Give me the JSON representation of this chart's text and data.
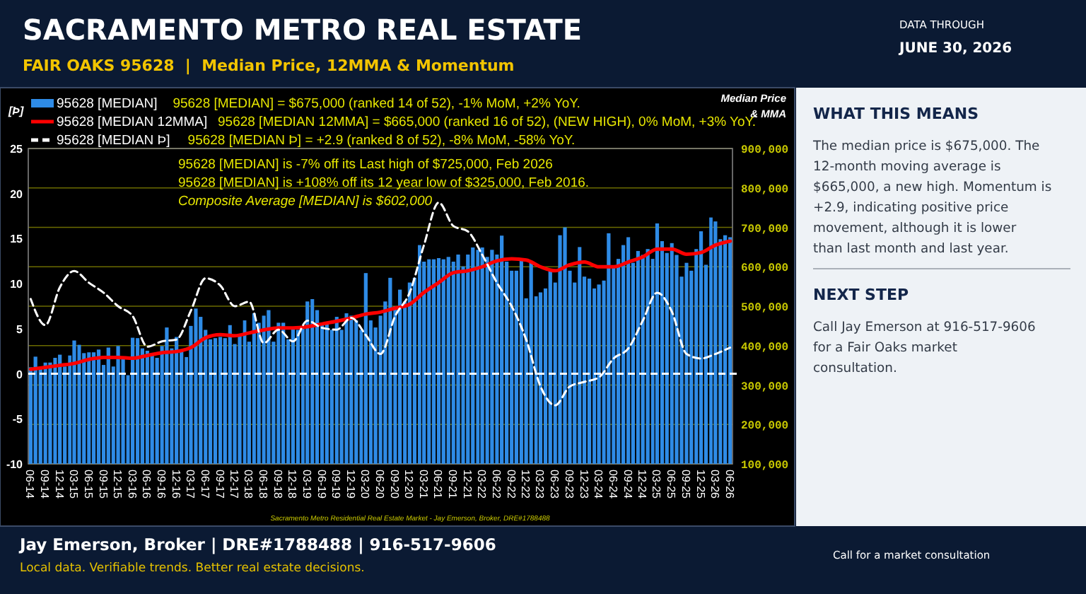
{
  "chart_data": {
    "type": "bar",
    "title": "SACRAMENTO METRO REAL ESTATE",
    "subtitle": "FAIR OAKS 95628  |  Median Price, 12MMA & Momentum",
    "ylabel": "[Þ]",
    "y2label": "Median Price & MMA",
    "annotations": [
      "95628 [MEDIAN] = $675,000 (ranked 14 of 52),  -1% MoM, +2% YoY.",
      "95628 [MEDIAN 12MMA] = $665,000 (ranked 16 of 52), (NEW HIGH), 0% MoM, +3% YoY.",
      "95628 [MEDIAN Þ] = +2.9 (ranked 8 of 52), -8% MoM, -58% YoY.",
      "95628 [MEDIAN] is -7% off its Last high of $725,000, Feb 2026",
      "95628 [MEDIAN] is +108% off its 12 year low of $325,000, Feb 2016.",
      "Composite Average [MEDIAN] is $602,000",
      "Sacramento Metro Residential Real Estate Market - Jay Emerson, Broker, DRE#1788488",
      "DATA THROUGH",
      "JUNE 30, 2026",
      "WHAT THIS MEANS",
      "The median price is $675,000. The 12-month moving average is $665,000, a new high. Momentum is +2.9, indicating positive price movement, although it is lower than last month and last year.",
      "NEXT STEP",
      "Call Jay Emerson at 916-517-9606 for a Fair Oaks market consultation.",
      "Jay Emerson, Broker | DRE#1788488 | 916-517-9606",
      "Local data. Verifiable trends. Better real estate decisions.",
      "Call for a market consultation"
    ],
    "x": [
      "2014-06",
      "2014-07",
      "2014-08",
      "2014-09",
      "2014-10",
      "2014-11",
      "2014-12",
      "2015-01",
      "2015-02",
      "2015-03",
      "2015-04",
      "2015-05",
      "2015-06",
      "2015-07",
      "2015-08",
      "2015-09",
      "2015-10",
      "2015-11",
      "2015-12",
      "2016-01",
      "2016-02",
      "2016-03",
      "2016-04",
      "2016-05",
      "2016-06",
      "2016-07",
      "2016-08",
      "2016-09",
      "2016-10",
      "2016-11",
      "2016-12",
      "2017-01",
      "2017-02",
      "2017-03",
      "2017-04",
      "2017-05",
      "2017-06",
      "2017-07",
      "2017-08",
      "2017-09",
      "2017-10",
      "2017-11",
      "2017-12",
      "2018-01",
      "2018-02",
      "2018-03",
      "2018-04",
      "2018-05",
      "2018-06",
      "2018-07",
      "2018-08",
      "2018-09",
      "2018-10",
      "2018-11",
      "2018-12",
      "2019-01",
      "2019-02",
      "2019-03",
      "2019-04",
      "2019-05",
      "2019-06",
      "2019-07",
      "2019-08",
      "2019-09",
      "2019-10",
      "2019-11",
      "2019-12",
      "2020-01",
      "2020-02",
      "2020-03",
      "2020-04",
      "2020-05",
      "2020-06",
      "2020-07",
      "2020-08",
      "2020-09",
      "2020-10",
      "2020-11",
      "2020-12",
      "2021-01",
      "2021-02",
      "2021-03",
      "2021-04",
      "2021-05",
      "2021-06",
      "2021-07",
      "2021-08",
      "2021-09",
      "2021-10",
      "2021-11",
      "2021-12",
      "2022-01",
      "2022-02",
      "2022-03",
      "2022-04",
      "2022-05",
      "2022-06",
      "2022-07",
      "2022-08",
      "2022-09",
      "2022-10",
      "2022-11",
      "2022-12",
      "2023-01",
      "2023-02",
      "2023-03",
      "2023-04",
      "2023-05",
      "2023-06",
      "2023-07",
      "2023-08",
      "2023-09",
      "2023-10",
      "2023-11",
      "2023-12",
      "2024-01",
      "2024-02",
      "2024-03",
      "2024-04",
      "2024-05",
      "2024-06",
      "2024-07",
      "2024-08",
      "2024-09",
      "2024-10",
      "2024-11",
      "2024-12",
      "2025-01",
      "2025-02",
      "2025-03",
      "2025-04",
      "2025-05",
      "2025-06",
      "2025-07",
      "2025-08",
      "2025-09",
      "2025-10",
      "2025-11",
      "2025-12",
      "2026-01",
      "2026-02",
      "2026-03",
      "2026-04",
      "2026-05",
      "2026-06"
    ],
    "xlim": [
      "2014-05-17",
      "2026-06-16"
    ],
    "xticks": [
      {
        "value": "2014-06",
        "label": "06-14"
      },
      {
        "value": "2014-09",
        "label": "09-14"
      },
      {
        "value": "2014-12",
        "label": "12-14"
      },
      {
        "value": "2015-03",
        "label": "03-15"
      },
      {
        "value": "2015-06",
        "label": "06-15"
      },
      {
        "value": "2015-09",
        "label": "09-15"
      },
      {
        "value": "2015-12",
        "label": "12-15"
      },
      {
        "value": "2016-03",
        "label": "03-16"
      },
      {
        "value": "2016-06",
        "label": "06-16"
      },
      {
        "value": "2016-09",
        "label": "09-16"
      },
      {
        "value": "2016-12",
        "label": "12-16"
      },
      {
        "value": "2017-03",
        "label": "03-17"
      },
      {
        "value": "2017-06",
        "label": "06-17"
      },
      {
        "value": "2017-09",
        "label": "09-17"
      },
      {
        "value": "2017-12",
        "label": "12-17"
      },
      {
        "value": "2018-03",
        "label": "03-18"
      },
      {
        "value": "2018-06",
        "label": "06-18"
      },
      {
        "value": "2018-09",
        "label": "09-18"
      },
      {
        "value": "2018-12",
        "label": "12-18"
      },
      {
        "value": "2019-03",
        "label": "03-19"
      },
      {
        "value": "2019-06",
        "label": "06-19"
      },
      {
        "value": "2019-09",
        "label": "09-19"
      },
      {
        "value": "2019-12",
        "label": "12-19"
      },
      {
        "value": "2020-03",
        "label": "03-20"
      },
      {
        "value": "2020-06",
        "label": "06-20"
      },
      {
        "value": "2020-09",
        "label": "09-20"
      },
      {
        "value": "2020-12",
        "label": "12-20"
      },
      {
        "value": "2021-03",
        "label": "03-21"
      },
      {
        "value": "2021-06",
        "label": "06-21"
      },
      {
        "value": "2021-09",
        "label": "09-21"
      },
      {
        "value": "2021-12",
        "label": "12-21"
      },
      {
        "value": "2022-03",
        "label": "03-22"
      },
      {
        "value": "2022-06",
        "label": "06-22"
      },
      {
        "value": "2022-09",
        "label": "09-22"
      },
      {
        "value": "2022-12",
        "label": "12-22"
      },
      {
        "value": "2023-03",
        "label": "03-23"
      },
      {
        "value": "2023-06",
        "label": "06-23"
      },
      {
        "value": "2023-09",
        "label": "09-23"
      },
      {
        "value": "2023-12",
        "label": "12-23"
      },
      {
        "value": "2024-03",
        "label": "03-24"
      },
      {
        "value": "2024-06",
        "label": "06-24"
      },
      {
        "value": "2024-09",
        "label": "09-24"
      },
      {
        "value": "2024-12",
        "label": "12-24"
      },
      {
        "value": "2025-03",
        "label": "03-25"
      },
      {
        "value": "2025-06",
        "label": "06-25"
      },
      {
        "value": "2025-09",
        "label": "09-25"
      },
      {
        "value": "2025-12",
        "label": "12-25"
      },
      {
        "value": "2026-03",
        "label": "03-26"
      },
      {
        "value": "2026-06",
        "label": "06-26"
      }
    ],
    "ylim": [
      -10,
      25
    ],
    "yticks": [
      -10,
      -5,
      0,
      5,
      10,
      15,
      20,
      25
    ],
    "y2lim": [
      100000,
      900000
    ],
    "y2ticks": [
      {
        "value": 100000,
        "label": "100,000"
      },
      {
        "value": 200000,
        "label": "200,000"
      },
      {
        "value": 300000,
        "label": "300,000"
      },
      {
        "value": 400000,
        "label": "400,000"
      },
      {
        "value": 500000,
        "label": "500,000"
      },
      {
        "value": 600000,
        "label": "600,000"
      },
      {
        "value": 700000,
        "label": "700,000"
      },
      {
        "value": 800000,
        "label": "800,000"
      },
      {
        "value": 900000,
        "label": "900,000"
      }
    ],
    "grid": "y2",
    "legend": "top left",
    "ref_lines": [
      {
        "axis": "y",
        "value": 0,
        "color": "#ffffff",
        "line_style": "dashed"
      }
    ],
    "series": [
      {
        "type": "bar",
        "axis": "y2",
        "name": "95628 [MEDIAN]",
        "color": "#2e8be6",
        "values": [
          345000,
          372000,
          345000,
          357000,
          357000,
          369000,
          377000,
          347000,
          375000,
          413000,
          402000,
          381000,
          383000,
          383000,
          390000,
          351000,
          395000,
          347000,
          399000,
          369000,
          325000,
          420000,
          419000,
          393000,
          387000,
          381000,
          369000,
          399000,
          446000,
          393000,
          422000,
          389000,
          371000,
          450000,
          494000,
          473000,
          440000,
          416000,
          419000,
          422000,
          419000,
          452000,
          404000,
          428000,
          464000,
          410000,
          482000,
          458000,
          476000,
          490000,
          410000,
          458000,
          458000,
          416000,
          446000,
          440000,
          446000,
          512000,
          518000,
          490000,
          452000,
          458000,
          440000,
          473000,
          440000,
          482000,
          476000,
          464000,
          440000,
          584000,
          464000,
          446000,
          476000,
          512000,
          572000,
          500000,
          542000,
          512000,
          560000,
          572000,
          655000,
          613000,
          619000,
          619000,
          622000,
          619000,
          625000,
          613000,
          631000,
          601000,
          631000,
          649000,
          643000,
          649000,
          625000,
          643000,
          631000,
          679000,
          613000,
          590000,
          590000,
          615000,
          520000,
          610000,
          525000,
          535000,
          545000,
          590000,
          560000,
          680000,
          700000,
          590000,
          560000,
          650000,
          575000,
          570000,
          545000,
          555000,
          565000,
          685000,
          600000,
          620000,
          655000,
          675000,
          610000,
          640000,
          630000,
          645000,
          620000,
          710000,
          665000,
          635000,
          660000,
          630000,
          575000,
          610000,
          590000,
          645000,
          690000,
          605000,
          725000,
          715000,
          670000,
          680000,
          675000
        ]
      },
      {
        "type": "line",
        "axis": "y2",
        "name": "95628 [MEDIAN 12MMA]",
        "color": "#ff0000",
        "x": [
          "2014-06",
          "2014-09",
          "2014-12",
          "2015-03",
          "2015-06",
          "2015-09",
          "2015-12",
          "2016-03",
          "2016-06",
          "2016-09",
          "2016-12",
          "2017-03",
          "2017-06",
          "2017-09",
          "2017-12",
          "2018-03",
          "2018-06",
          "2018-09",
          "2018-12",
          "2019-03",
          "2019-06",
          "2019-09",
          "2019-12",
          "2020-03",
          "2020-06",
          "2020-09",
          "2020-12",
          "2021-03",
          "2021-06",
          "2021-09",
          "2021-12",
          "2022-03",
          "2022-06",
          "2022-09",
          "2022-12",
          "2023-03",
          "2023-06",
          "2023-09",
          "2023-12",
          "2024-03",
          "2024-06",
          "2024-09",
          "2024-12",
          "2025-03",
          "2025-06",
          "2025-09",
          "2025-12",
          "2026-03",
          "2026-06"
        ],
        "values": [
          340000,
          345000,
          350000,
          355000,
          365000,
          370000,
          370000,
          368000,
          375000,
          382000,
          385000,
          395000,
          420000,
          428000,
          425000,
          432000,
          440000,
          445000,
          445000,
          448000,
          455000,
          462000,
          470000,
          480000,
          485000,
          495000,
          505000,
          535000,
          560000,
          585000,
          590000,
          600000,
          615000,
          620000,
          617000,
          600000,
          590000,
          605000,
          612000,
          600000,
          600000,
          612000,
          625000,
          645000,
          645000,
          632000,
          636000,
          655000,
          665000
        ]
      },
      {
        "type": "line",
        "axis": "y",
        "name": "95628 [MEDIAN Þ]",
        "color": "#ffffff",
        "line_style": "dashed",
        "x": [
          "2014-06",
          "2014-09",
          "2014-12",
          "2015-03",
          "2015-06",
          "2015-09",
          "2015-12",
          "2016-03",
          "2016-06",
          "2016-09",
          "2016-12",
          "2017-03",
          "2017-06",
          "2017-09",
          "2017-12",
          "2018-03",
          "2018-06",
          "2018-09",
          "2018-12",
          "2019-03",
          "2019-06",
          "2019-09",
          "2019-12",
          "2020-03",
          "2020-06",
          "2020-09",
          "2020-12",
          "2021-03",
          "2021-06",
          "2021-09",
          "2021-12",
          "2022-03",
          "2022-06",
          "2022-09",
          "2022-12",
          "2023-03",
          "2023-06",
          "2023-09",
          "2023-12",
          "2024-03",
          "2024-06",
          "2024-09",
          "2024-12",
          "2025-03",
          "2025-06",
          "2025-09",
          "2025-12",
          "2026-03",
          "2026-06"
        ],
        "values": [
          8.3,
          5.4,
          9.6,
          11.4,
          10.1,
          9.0,
          7.5,
          6.4,
          3.0,
          3.6,
          3.8,
          7.0,
          10.6,
          9.8,
          7.5,
          8.0,
          3.4,
          4.9,
          3.6,
          5.9,
          5.1,
          4.9,
          6.2,
          4.3,
          2.2,
          6.4,
          9.0,
          14.3,
          19.0,
          16.4,
          15.8,
          13.2,
          10.1,
          7.5,
          3.8,
          -1.4,
          -3.5,
          -1.4,
          -0.9,
          -0.4,
          1.7,
          2.8,
          5.9,
          9.0,
          6.9,
          2.2,
          1.7,
          2.2,
          2.9
        ]
      }
    ]
  }
}
